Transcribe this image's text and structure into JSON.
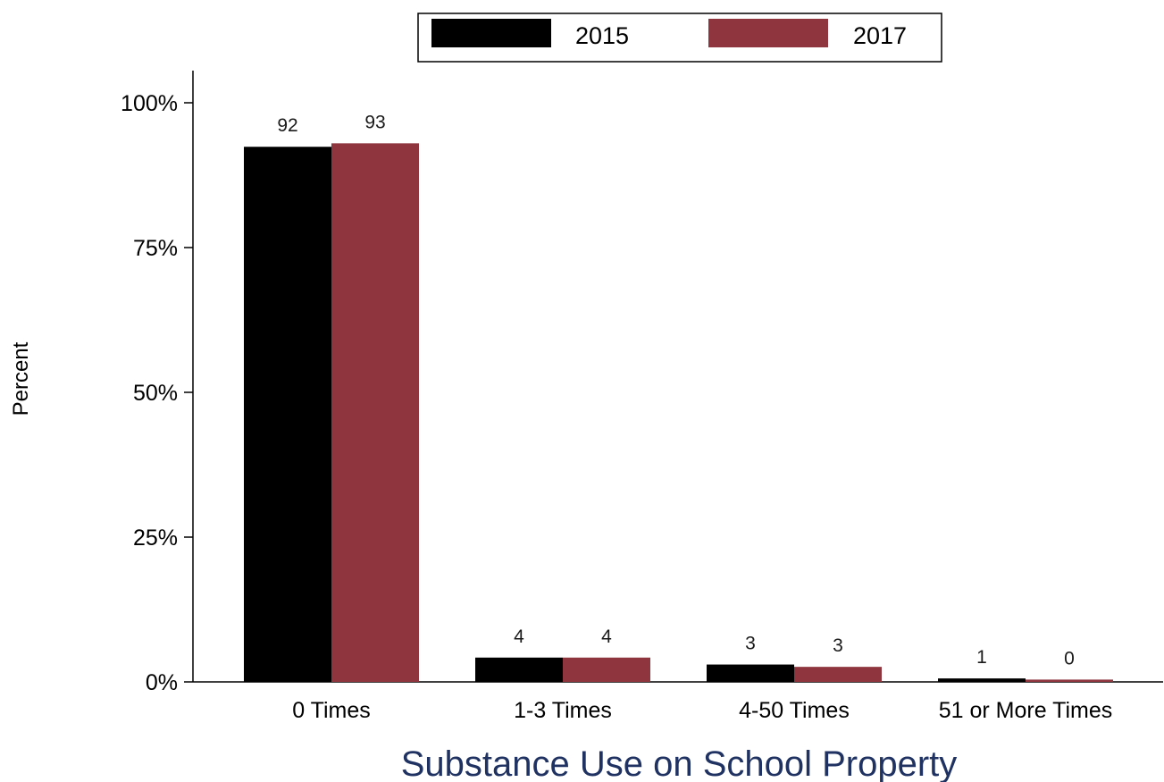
{
  "chart_data": {
    "type": "bar",
    "categories": [
      "0 Times",
      "1-3 Times",
      "4-50 Times",
      "51 or More Times"
    ],
    "series": [
      {
        "name": "2015",
        "color": "#000000",
        "values": [
          92.4,
          4.2,
          3.0,
          0.6
        ],
        "labels": [
          "92",
          "4",
          "3",
          "1"
        ]
      },
      {
        "name": "2017",
        "color": "#8e353d",
        "values": [
          93.0,
          4.2,
          2.6,
          0.4
        ],
        "labels": [
          "93",
          "4",
          "3",
          "0"
        ]
      }
    ],
    "xlabel": "Substance Use on School Property",
    "xlabel_color": "#1f3262",
    "ylabel": "Percent",
    "ylim": [
      0,
      100
    ],
    "yticks": [
      0,
      25,
      50,
      75,
      100
    ],
    "ytick_labels": [
      "0%",
      "25%",
      "50%",
      "75%",
      "100%"
    ],
    "grid": false,
    "legend_position": "top-center"
  }
}
